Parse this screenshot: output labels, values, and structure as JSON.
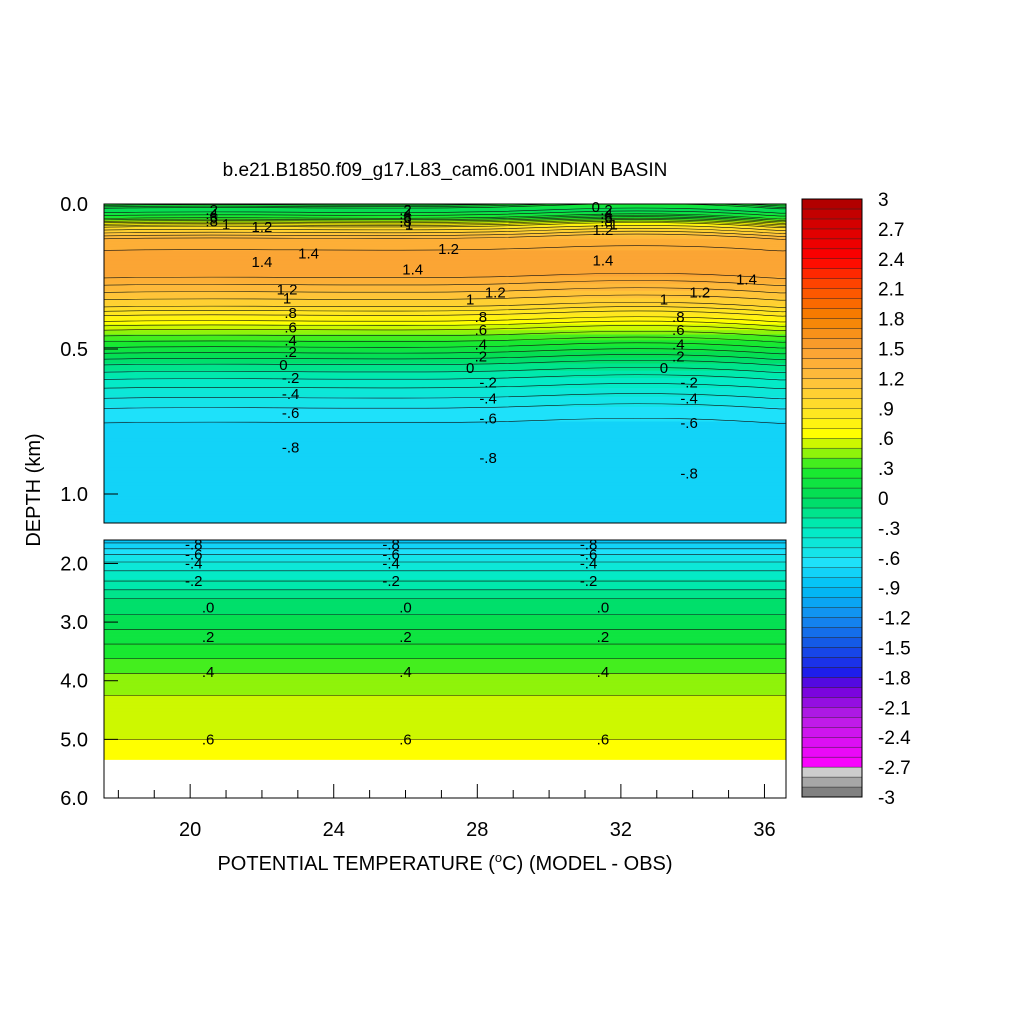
{
  "chart_data": {
    "type": "heatmap",
    "title": "b.e21.B1850.f09_g17.L83_cam6.001 INDIAN BASIN",
    "xlabel": "POTENTIAL TEMPERATURE (°C) (MODEL - OBS)",
    "xlabel_parts": {
      "before": "POTENTIAL TEMPERATURE (",
      "sup": "o",
      "after": "C) (MODEL - OBS)"
    },
    "ylabel": "DEPTH (km)",
    "x_ticks": [
      "20",
      "24",
      "28",
      "32",
      "36"
    ],
    "x_tick_values": [
      20,
      24,
      28,
      32,
      36
    ],
    "xlim": [
      17.6,
      36.6
    ],
    "upper_panel": {
      "ylim": [
        0.0,
        1.1
      ],
      "y_ticks": [
        "0.0",
        "0.5",
        "1.0"
      ],
      "y_tick_values": [
        0.0,
        0.5,
        1.0
      ]
    },
    "lower_panel": {
      "ylim": [
        1.6,
        6.0
      ],
      "y_ticks": [
        "2.0",
        "3.0",
        "4.0",
        "5.0",
        "6.0"
      ],
      "y_tick_values": [
        2.0,
        3.0,
        4.0,
        5.0,
        6.0
      ],
      "data_bottom": 5.35
    },
    "colorbar": {
      "min": -3,
      "max": 3,
      "step": 0.1,
      "labels": [
        "3",
        "2.7",
        "2.4",
        "2.1",
        "1.8",
        "1.5",
        "1.2",
        ".9",
        ".6",
        ".3",
        "0",
        "-.3",
        "-.6",
        "-.9",
        "-1.2",
        "-1.5",
        "-1.8",
        "-2.1",
        "-2.4",
        "-2.7",
        "-3"
      ],
      "label_values": [
        3,
        2.7,
        2.4,
        2.1,
        1.8,
        1.5,
        1.2,
        0.9,
        0.6,
        0.3,
        0,
        -0.3,
        -0.6,
        -0.9,
        -1.2,
        -1.5,
        -1.8,
        -2.1,
        -2.4,
        -2.7,
        -3
      ]
    },
    "upper_profile": {
      "depth_km": [
        0.0,
        0.02,
        0.05,
        0.08,
        0.12,
        0.18,
        0.25,
        0.3,
        0.35,
        0.4,
        0.45,
        0.5,
        0.55,
        0.6,
        0.65,
        0.7,
        0.75,
        0.8,
        0.85,
        0.9,
        1.1
      ],
      "value": [
        0.3,
        0.0,
        0.3,
        0.9,
        1.3,
        1.45,
        1.4,
        1.2,
        1.0,
        0.7,
        0.4,
        0.15,
        -0.1,
        -0.3,
        -0.45,
        -0.6,
        -0.7,
        -0.78,
        -0.8,
        -0.8,
        -0.8
      ]
    },
    "lower_profile": {
      "depth_km": [
        1.6,
        1.9,
        2.2,
        2.6,
        3.0,
        3.5,
        4.0,
        4.5,
        5.0,
        5.35
      ],
      "value": [
        -0.85,
        -0.55,
        -0.35,
        -0.1,
        0.05,
        0.25,
        0.45,
        0.55,
        0.6,
        0.6
      ]
    },
    "upper_contour_labels": [
      {
        "text": "0",
        "x": 31.3,
        "y": 0.01
      },
      {
        "text": ".2",
        "x": 20.6,
        "y": 0.02
      },
      {
        "text": ".2",
        "x": 26.0,
        "y": 0.02
      },
      {
        "text": ".2",
        "x": 31.6,
        "y": 0.02
      },
      {
        "text": ".4",
        "x": 20.6,
        "y": 0.035
      },
      {
        "text": ".4",
        "x": 26.0,
        "y": 0.035
      },
      {
        "text": ".4",
        "x": 31.6,
        "y": 0.035
      },
      {
        "text": ".6",
        "x": 20.6,
        "y": 0.048
      },
      {
        "text": ".6",
        "x": 26.0,
        "y": 0.048
      },
      {
        "text": ".6",
        "x": 31.6,
        "y": 0.048
      },
      {
        "text": ".8",
        "x": 20.6,
        "y": 0.06
      },
      {
        "text": ".8",
        "x": 26.0,
        "y": 0.06
      },
      {
        "text": ".8",
        "x": 31.6,
        "y": 0.06
      },
      {
        "text": "1",
        "x": 21.0,
        "y": 0.07
      },
      {
        "text": "1",
        "x": 26.1,
        "y": 0.07
      },
      {
        "text": "1",
        "x": 31.8,
        "y": 0.07
      },
      {
        "text": "1.2",
        "x": 22.0,
        "y": 0.08
      },
      {
        "text": "1.2",
        "x": 27.2,
        "y": 0.155
      },
      {
        "text": "1.2",
        "x": 31.5,
        "y": 0.09
      },
      {
        "text": "1.4",
        "x": 23.3,
        "y": 0.17
      },
      {
        "text": "1.4",
        "x": 22.0,
        "y": 0.2
      },
      {
        "text": "1.4",
        "x": 26.2,
        "y": 0.225
      },
      {
        "text": "1.4",
        "x": 31.5,
        "y": 0.195
      },
      {
        "text": "1.4",
        "x": 35.5,
        "y": 0.26
      },
      {
        "text": "1.2",
        "x": 22.7,
        "y": 0.295
      },
      {
        "text": "1.2",
        "x": 28.5,
        "y": 0.305
      },
      {
        "text": "1.2",
        "x": 34.2,
        "y": 0.305
      },
      {
        "text": "1",
        "x": 22.7,
        "y": 0.325
      },
      {
        "text": "1",
        "x": 27.8,
        "y": 0.33
      },
      {
        "text": "1",
        "x": 33.2,
        "y": 0.33
      },
      {
        "text": ".8",
        "x": 22.8,
        "y": 0.375
      },
      {
        "text": ".8",
        "x": 28.1,
        "y": 0.39
      },
      {
        "text": ".8",
        "x": 33.6,
        "y": 0.39
      },
      {
        "text": ".6",
        "x": 22.8,
        "y": 0.425
      },
      {
        "text": ".6",
        "x": 28.1,
        "y": 0.435
      },
      {
        "text": ".6",
        "x": 33.6,
        "y": 0.435
      },
      {
        "text": ".4",
        "x": 22.8,
        "y": 0.47
      },
      {
        "text": ".4",
        "x": 28.1,
        "y": 0.485
      },
      {
        "text": ".4",
        "x": 33.6,
        "y": 0.485
      },
      {
        "text": ".2",
        "x": 22.8,
        "y": 0.51
      },
      {
        "text": ".2",
        "x": 28.1,
        "y": 0.525
      },
      {
        "text": ".2",
        "x": 33.6,
        "y": 0.525
      },
      {
        "text": "0",
        "x": 22.6,
        "y": 0.555
      },
      {
        "text": "0",
        "x": 27.8,
        "y": 0.565
      },
      {
        "text": "0",
        "x": 33.2,
        "y": 0.565
      },
      {
        "text": "-.2",
        "x": 22.8,
        "y": 0.6
      },
      {
        "text": "-.2",
        "x": 28.3,
        "y": 0.615
      },
      {
        "text": "-.2",
        "x": 33.9,
        "y": 0.615
      },
      {
        "text": "-.4",
        "x": 22.8,
        "y": 0.655
      },
      {
        "text": "-.4",
        "x": 28.3,
        "y": 0.67
      },
      {
        "text": "-.4",
        "x": 33.9,
        "y": 0.67
      },
      {
        "text": "-.6",
        "x": 22.8,
        "y": 0.72
      },
      {
        "text": "-.6",
        "x": 28.3,
        "y": 0.74
      },
      {
        "text": "-.6",
        "x": 33.9,
        "y": 0.755
      },
      {
        "text": "-.8",
        "x": 22.8,
        "y": 0.84
      },
      {
        "text": "-.8",
        "x": 28.3,
        "y": 0.875
      },
      {
        "text": "-.8",
        "x": 33.9,
        "y": 0.93
      }
    ],
    "lower_contour_labels": [
      {
        "text": "-.8",
        "x": 20.1,
        "y": 1.68
      },
      {
        "text": "-.6",
        "x": 20.1,
        "y": 1.85
      },
      {
        "text": "-.4",
        "x": 20.1,
        "y": 2.0
      },
      {
        "text": "-.2",
        "x": 20.1,
        "y": 2.3
      },
      {
        "text": ".0",
        "x": 20.5,
        "y": 2.75
      },
      {
        "text": ".2",
        "x": 20.5,
        "y": 3.25
      },
      {
        "text": ".4",
        "x": 20.5,
        "y": 3.85
      },
      {
        "text": ".6",
        "x": 20.5,
        "y": 5.0
      },
      {
        "text": "-.8",
        "x": 25.6,
        "y": 1.68
      },
      {
        "text": "-.6",
        "x": 25.6,
        "y": 1.85
      },
      {
        "text": "-.4",
        "x": 25.6,
        "y": 2.0
      },
      {
        "text": "-.2",
        "x": 25.6,
        "y": 2.3
      },
      {
        "text": ".0",
        "x": 26.0,
        "y": 2.75
      },
      {
        "text": ".2",
        "x": 26.0,
        "y": 3.25
      },
      {
        "text": ".4",
        "x": 26.0,
        "y": 3.85
      },
      {
        "text": ".6",
        "x": 26.0,
        "y": 5.0
      },
      {
        "text": "-.8",
        "x": 31.1,
        "y": 1.68
      },
      {
        "text": "-.6",
        "x": 31.1,
        "y": 1.85
      },
      {
        "text": "-.4",
        "x": 31.1,
        "y": 2.0
      },
      {
        "text": "-.2",
        "x": 31.1,
        "y": 2.3
      },
      {
        "text": ".0",
        "x": 31.5,
        "y": 2.75
      },
      {
        "text": ".2",
        "x": 31.5,
        "y": 3.25
      },
      {
        "text": ".4",
        "x": 31.5,
        "y": 3.85
      },
      {
        "text": ".6",
        "x": 31.5,
        "y": 5.0
      }
    ]
  }
}
